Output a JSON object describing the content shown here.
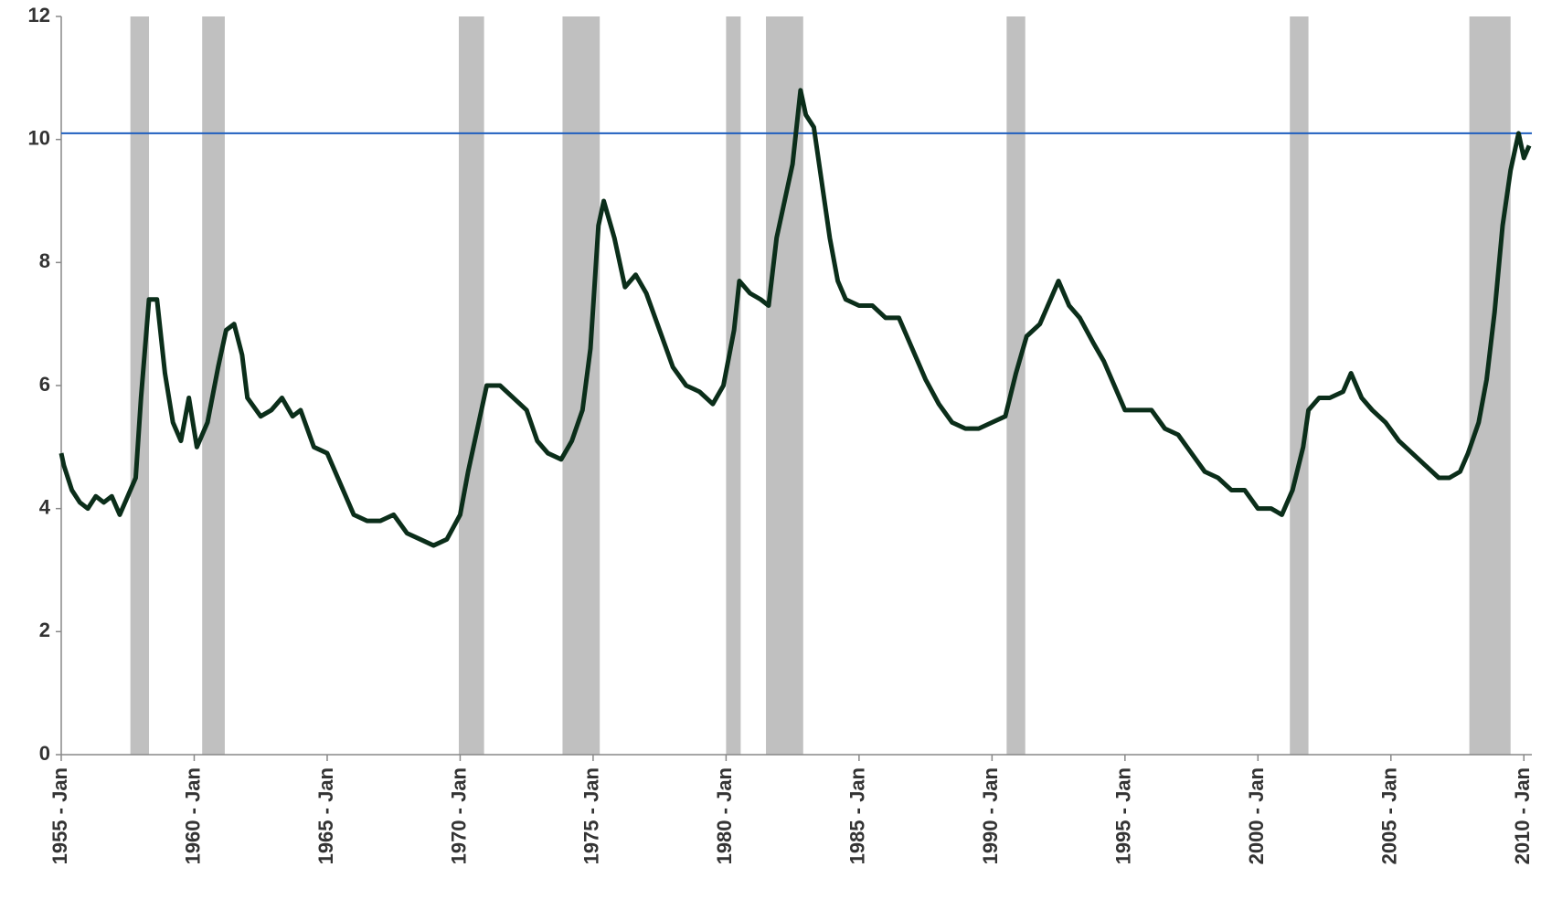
{
  "chart_data": {
    "type": "line",
    "x": [
      1955.0,
      1955.1,
      1955.4,
      1955.7,
      1956.0,
      1956.3,
      1956.6,
      1956.9,
      1957.2,
      1957.5,
      1957.8,
      1958.0,
      1958.3,
      1958.6,
      1958.9,
      1959.2,
      1959.5,
      1959.8,
      1960.1,
      1960.5,
      1960.9,
      1961.2,
      1961.5,
      1961.8,
      1962.0,
      1962.5,
      1962.9,
      1963.3,
      1963.7,
      1964.0,
      1964.5,
      1965.0,
      1965.5,
      1966.0,
      1966.5,
      1967.0,
      1967.5,
      1968.0,
      1968.5,
      1969.0,
      1969.5,
      1970.0,
      1970.3,
      1970.7,
      1971.0,
      1971.5,
      1972.0,
      1972.5,
      1972.9,
      1973.3,
      1973.8,
      1974.2,
      1974.6,
      1974.9,
      1975.2,
      1975.4,
      1975.8,
      1976.2,
      1976.6,
      1977.0,
      1977.5,
      1978.0,
      1978.5,
      1979.0,
      1979.5,
      1979.9,
      1980.3,
      1980.5,
      1980.9,
      1981.3,
      1981.6,
      1981.9,
      1982.2,
      1982.5,
      1982.8,
      1983.0,
      1983.3,
      1983.6,
      1983.9,
      1984.2,
      1984.5,
      1985.0,
      1985.5,
      1986.0,
      1986.5,
      1987.0,
      1987.5,
      1988.0,
      1988.5,
      1989.0,
      1989.5,
      1990.0,
      1990.5,
      1990.9,
      1991.3,
      1991.8,
      1992.2,
      1992.5,
      1992.9,
      1993.3,
      1993.8,
      1994.2,
      1994.6,
      1995.0,
      1995.5,
      1996.0,
      1996.5,
      1997.0,
      1997.5,
      1998.0,
      1998.5,
      1999.0,
      1999.5,
      2000.0,
      2000.5,
      2000.9,
      2001.3,
      2001.7,
      2001.9,
      2002.3,
      2002.7,
      2003.2,
      2003.5,
      2003.9,
      2004.3,
      2004.8,
      2005.3,
      2005.8,
      2006.3,
      2006.8,
      2007.2,
      2007.6,
      2007.9,
      2008.3,
      2008.6,
      2008.9,
      2009.2,
      2009.5,
      2009.8,
      2010.0,
      2010.2
    ],
    "series": [
      {
        "color": "#0b2e1a",
        "values": [
          4.9,
          4.7,
          4.3,
          4.1,
          4.0,
          4.2,
          4.1,
          4.2,
          3.9,
          4.2,
          4.5,
          5.8,
          7.4,
          7.4,
          6.2,
          5.4,
          5.1,
          5.8,
          5.0,
          5.4,
          6.3,
          6.9,
          7.0,
          6.5,
          5.8,
          5.5,
          5.6,
          5.8,
          5.5,
          5.6,
          5.0,
          4.9,
          4.4,
          3.9,
          3.8,
          3.8,
          3.9,
          3.6,
          3.5,
          3.4,
          3.5,
          3.9,
          4.6,
          5.4,
          6.0,
          6.0,
          5.8,
          5.6,
          5.1,
          4.9,
          4.8,
          5.1,
          5.6,
          6.6,
          8.6,
          9.0,
          8.4,
          7.6,
          7.8,
          7.5,
          6.9,
          6.3,
          6.0,
          5.9,
          5.7,
          6.0,
          6.9,
          7.7,
          7.5,
          7.4,
          7.3,
          8.4,
          9.0,
          9.6,
          10.8,
          10.4,
          10.2,
          9.3,
          8.4,
          7.7,
          7.4,
          7.3,
          7.3,
          7.1,
          7.1,
          6.6,
          6.1,
          5.7,
          5.4,
          5.3,
          5.3,
          5.4,
          5.5,
          6.2,
          6.8,
          7.0,
          7.4,
          7.7,
          7.3,
          7.1,
          6.7,
          6.4,
          6.0,
          5.6,
          5.6,
          5.6,
          5.3,
          5.2,
          4.9,
          4.6,
          4.5,
          4.3,
          4.3,
          4.0,
          4.0,
          3.9,
          4.3,
          5.0,
          5.6,
          5.8,
          5.8,
          5.9,
          6.2,
          5.8,
          5.6,
          5.4,
          5.1,
          4.9,
          4.7,
          4.5,
          4.5,
          4.6,
          4.9,
          5.4,
          6.1,
          7.2,
          8.6,
          9.5,
          10.1,
          9.7,
          9.9
        ]
      }
    ],
    "recessions": [
      [
        1957.6,
        1958.3
      ],
      [
        1960.3,
        1961.15
      ],
      [
        1969.95,
        1970.9
      ],
      [
        1973.85,
        1975.25
      ],
      [
        1980.0,
        1980.55
      ],
      [
        1981.5,
        1982.9
      ],
      [
        1990.55,
        1991.25
      ],
      [
        2001.2,
        2001.9
      ],
      [
        2007.95,
        2009.5
      ]
    ],
    "recession_color": "#c0c0c0",
    "reference_line": 10.1,
    "reference_color": "#1f5fbf",
    "xlim": [
      1955.0,
      2010.3
    ],
    "xticks": [
      {
        "value": 1955,
        "label": "1955 - Jan"
      },
      {
        "value": 1960,
        "label": "1960 - Jan"
      },
      {
        "value": 1965,
        "label": "1965 - Jan"
      },
      {
        "value": 1970,
        "label": "1970 - Jan"
      },
      {
        "value": 1975,
        "label": "1975 - Jan"
      },
      {
        "value": 1980,
        "label": "1980 - Jan"
      },
      {
        "value": 1985,
        "label": "1985 - Jan"
      },
      {
        "value": 1990,
        "label": "1990 - Jan"
      },
      {
        "value": 1995,
        "label": "1995 - Jan"
      },
      {
        "value": 2000,
        "label": "2000 - Jan"
      },
      {
        "value": 2005,
        "label": "2005 - Jan"
      },
      {
        "value": 2010,
        "label": "2010 - Jan"
      }
    ],
    "ylim": [
      0,
      12
    ],
    "yticks": [
      0,
      2,
      4,
      6,
      8,
      10,
      12
    ]
  }
}
